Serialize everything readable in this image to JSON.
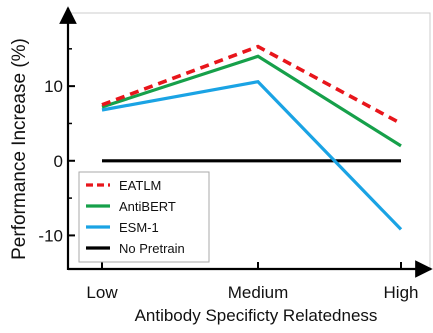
{
  "chart_data": {
    "type": "line",
    "title": "",
    "xlabel": "Antibody Specificty Relatedness",
    "ylabel": "Performance Increase (%)",
    "categories": [
      "Low",
      "Medium",
      "High"
    ],
    "yticks": [
      "-10",
      "0",
      "10"
    ],
    "ylim": [
      -14.5,
      19.8
    ],
    "grid": false,
    "legend_position": "bottom-left",
    "series": [
      {
        "name": "EATLM",
        "values": [
          7.5,
          15.3,
          5.0
        ],
        "color": "#e8151b",
        "dash": true
      },
      {
        "name": "AntiBERT",
        "values": [
          7.2,
          14.0,
          2.0
        ],
        "color": "#16a04a",
        "dash": false
      },
      {
        "name": "ESM-1",
        "values": [
          6.8,
          10.6,
          -9.2
        ],
        "color": "#1aa3e4",
        "dash": false
      },
      {
        "name": "No Pretrain",
        "values": [
          0,
          0,
          0
        ],
        "color": "#000000",
        "dash": false
      }
    ]
  }
}
